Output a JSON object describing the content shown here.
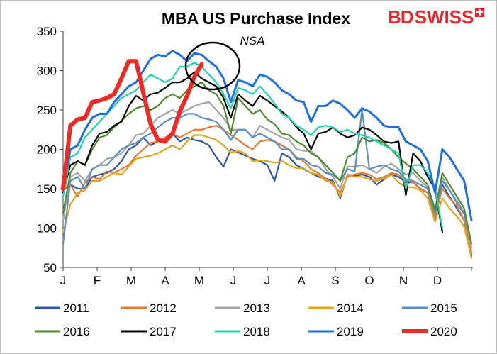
{
  "chart_data": {
    "type": "line",
    "title": "MBA US Purchase Index",
    "subtitle": "NSA",
    "ylim": [
      50,
      350
    ],
    "yticks": [
      50,
      100,
      150,
      200,
      250,
      300,
      350
    ],
    "xticks": [
      "J",
      "F",
      "M",
      "A",
      "M",
      "J",
      "J",
      "A",
      "S",
      "O",
      "N",
      "D"
    ],
    "legend_position": "bottom",
    "grid": false,
    "series": [
      {
        "name": "2011",
        "color": "#2e58a6",
        "values": [
          148,
          155,
          150,
          150,
          165,
          168,
          170,
          175,
          185,
          200,
          205,
          215,
          205,
          210,
          215,
          220,
          210,
          215,
          212,
          210,
          205,
          190,
          178,
          200,
          196,
          192,
          188,
          185,
          180,
          160,
          195,
          190,
          180,
          175,
          170,
          165,
          163,
          160,
          138,
          168,
          166,
          168,
          165,
          155,
          162,
          168,
          165,
          158,
          158,
          150,
          145,
          112,
          155,
          140,
          125,
          110,
          65
        ]
      },
      {
        "name": "2012",
        "color": "#e07b39",
        "values": [
          150,
          155,
          140,
          158,
          165,
          162,
          172,
          170,
          175,
          180,
          192,
          200,
          208,
          210,
          215,
          220,
          215,
          220,
          225,
          225,
          228,
          230,
          225,
          218,
          212,
          205,
          200,
          210,
          212,
          210,
          205,
          200,
          190,
          185,
          175,
          170,
          163,
          155,
          145,
          165,
          168,
          170,
          168,
          162,
          165,
          170,
          168,
          160,
          158,
          150,
          145,
          115,
          150,
          138,
          128,
          110,
          70
        ]
      },
      {
        "name": "2013",
        "color": "#a5a5a5",
        "values": [
          110,
          165,
          170,
          160,
          175,
          180,
          188,
          190,
          195,
          205,
          218,
          220,
          230,
          240,
          245,
          250,
          245,
          250,
          255,
          258,
          260,
          250,
          240,
          225,
          225,
          225,
          215,
          230,
          225,
          220,
          215,
          212,
          200,
          198,
          198,
          190,
          175,
          165,
          150,
          178,
          178,
          180,
          175,
          170,
          178,
          182,
          175,
          168,
          170,
          160,
          152,
          125,
          165,
          148,
          135,
          120,
          75
        ]
      },
      {
        "name": "2014",
        "color": "#e3a51d",
        "values": [
          95,
          130,
          145,
          148,
          160,
          160,
          165,
          170,
          168,
          178,
          188,
          190,
          192,
          195,
          200,
          205,
          200,
          210,
          218,
          218,
          215,
          212,
          205,
          196,
          198,
          195,
          185,
          186,
          185,
          183,
          185,
          180,
          176,
          176,
          170,
          168,
          160,
          158,
          140,
          168,
          165,
          165,
          162,
          160,
          163,
          168,
          158,
          152,
          152,
          148,
          138,
          108,
          138,
          125,
          115,
          102,
          62
        ]
      },
      {
        "name": "2015",
        "color": "#5b8fc7",
        "values": [
          80,
          160,
          165,
          150,
          175,
          180,
          180,
          190,
          200,
          205,
          208,
          215,
          220,
          228,
          235,
          240,
          240,
          245,
          245,
          240,
          238,
          235,
          225,
          212,
          225,
          225,
          215,
          220,
          215,
          210,
          200,
          200,
          188,
          188,
          180,
          178,
          170,
          168,
          160,
          175,
          172,
          250,
          175,
          178,
          180,
          175,
          172,
          162,
          160,
          155,
          150,
          118,
          160,
          148,
          132,
          118,
          80
        ]
      },
      {
        "name": "2016",
        "color": "#4f8c2c",
        "values": [
          120,
          170,
          185,
          180,
          200,
          215,
          218,
          228,
          236,
          245,
          252,
          255,
          250,
          255,
          265,
          270,
          265,
          275,
          280,
          285,
          275,
          270,
          255,
          220,
          265,
          255,
          245,
          250,
          238,
          232,
          220,
          218,
          210,
          205,
          195,
          190,
          180,
          170,
          160,
          190,
          195,
          215,
          210,
          212,
          208,
          200,
          190,
          182,
          175,
          165,
          155,
          122,
          170,
          155,
          140,
          125,
          80
        ]
      },
      {
        "name": "2017",
        "color": "#000000",
        "values": [
          145,
          180,
          185,
          180,
          205,
          220,
          222,
          230,
          235,
          255,
          268,
          262,
          270,
          272,
          278,
          285,
          285,
          290,
          298,
          290,
          285,
          280,
          265,
          240,
          270,
          262,
          255,
          268,
          262,
          255,
          248,
          240,
          228,
          220,
          200,
          220,
          222,
          228,
          220,
          215,
          218,
          228,
          225,
          218,
          210,
          208,
          210,
          142,
          195,
          185,
          165,
          150,
          95
        ]
      },
      {
        "name": "2018",
        "color": "#1fd1b2",
        "values": [
          140,
          190,
          195,
          215,
          225,
          235,
          245,
          255,
          265,
          270,
          275,
          285,
          295,
          290,
          285,
          290,
          305,
          305,
          310,
          305,
          295,
          285,
          270,
          252,
          278,
          275,
          270,
          280,
          270,
          258,
          245,
          240,
          230,
          225,
          218,
          228,
          230,
          228,
          222,
          225,
          220,
          218,
          215,
          210,
          205,
          200,
          195,
          150,
          180,
          180,
          170,
          150,
          100
        ]
      },
      {
        "name": "2019",
        "color": "#1c70e3",
        "values": [
          148,
          200,
          205,
          225,
          240,
          245,
          245,
          260,
          270,
          280,
          285,
          300,
          315,
          320,
          318,
          325,
          320,
          312,
          322,
          320,
          312,
          305,
          290,
          260,
          288,
          285,
          280,
          295,
          292,
          285,
          275,
          270,
          262,
          260,
          235,
          255,
          255,
          262,
          258,
          250,
          240,
          252,
          248,
          240,
          230,
          228,
          228,
          210,
          205,
          200,
          185,
          145,
          200,
          190,
          175,
          160,
          110
        ]
      },
      {
        "name": "2020",
        "color": "#ee2a24",
        "values": [
          150,
          230,
          238,
          240,
          260,
          262,
          265,
          270,
          290,
          312,
          312,
          272,
          232,
          212,
          210,
          220,
          248,
          268,
          292,
          308
        ]
      }
    ]
  },
  "legend_rows": [
    [
      0,
      1,
      2,
      3,
      4
    ],
    [
      5,
      6,
      7,
      8,
      9
    ]
  ]
}
